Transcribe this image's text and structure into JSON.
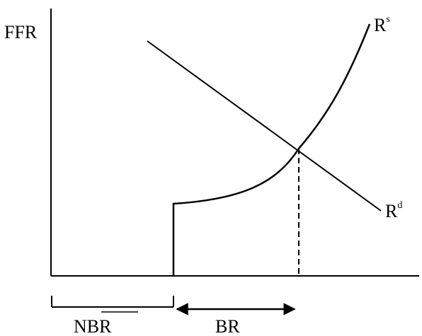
{
  "labels": {
    "y_axis": "FFR",
    "supply_base": "R",
    "supply_sup": "s",
    "demand_base": "R",
    "demand_sup": "d",
    "nbr": "NBR",
    "br": "BR"
  },
  "colors": {
    "line": "#000000",
    "background": "#ffffff"
  }
}
